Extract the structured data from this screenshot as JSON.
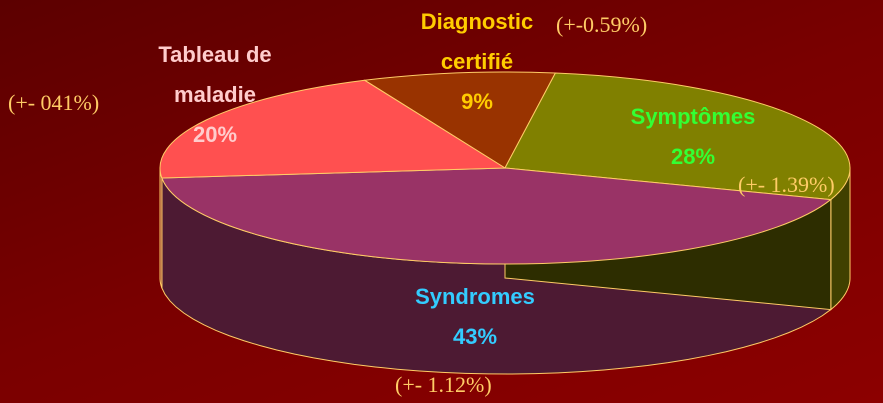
{
  "chart_data": {
    "type": "pie",
    "categories": [
      "Diagnostic certifié",
      "Symptômes",
      "Syndromes",
      "Tableau de maladie"
    ],
    "values": [
      9,
      28,
      43,
      20
    ],
    "value_labels": [
      "9%",
      "28%",
      "43%",
      "20%"
    ],
    "colors": [
      "#993300",
      "#808000",
      "#993366",
      "#ff5050"
    ],
    "label_colors": [
      "#ffcc00",
      "#33ff33",
      "#33ccff",
      "#ffcccc"
    ],
    "annotations": [
      "(+-0.59%)",
      "(+- 1.39%)",
      "(+- 1.12%)",
      "(+- 041%)"
    ]
  }
}
